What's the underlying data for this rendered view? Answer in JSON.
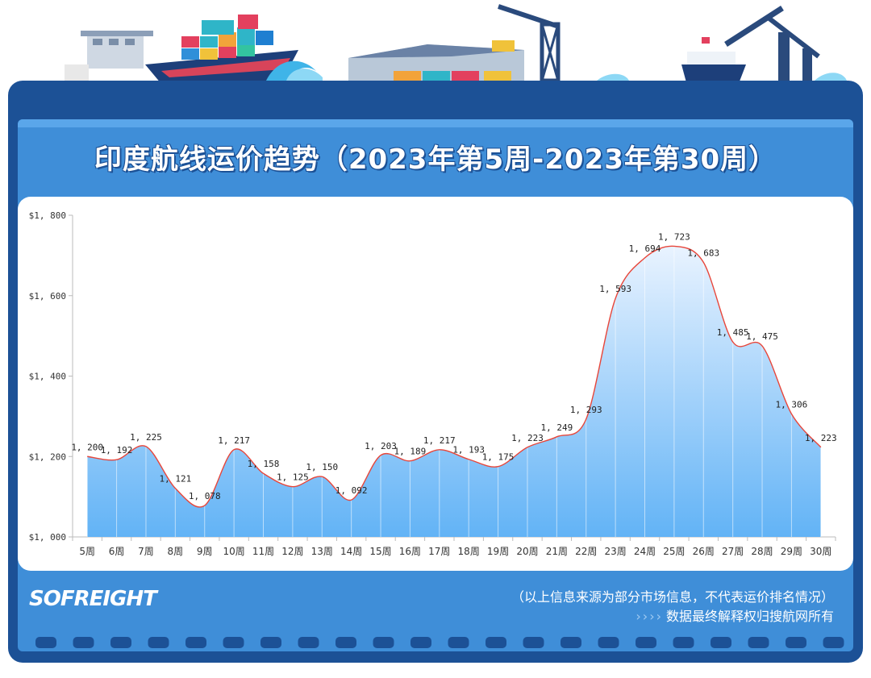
{
  "header": {
    "title": "印度航线运价趋势（2023年第5周-2023年第30周）"
  },
  "footer": {
    "logo": "SOFREIGHT",
    "note_source": "（以上信息来源为部分市场信息，不代表运价排名情况）",
    "note_rights": "数据最终解释权归搜航网所有",
    "arrows": "››››"
  },
  "colors": {
    "board": "#1c5196",
    "panel": "#3f8ed8",
    "line": "#e8463a",
    "area_top": "#e9f3ff",
    "area_bottom": "#62b3f6"
  },
  "chart_data": {
    "type": "area",
    "title": "",
    "xlabel": "",
    "ylabel": "",
    "categories": [
      "5周",
      "6周",
      "7周",
      "8周",
      "9周",
      "10周",
      "11周",
      "12周",
      "13周",
      "14周",
      "15周",
      "16周",
      "17周",
      "18周",
      "19周",
      "20周",
      "21周",
      "22周",
      "23周",
      "24周",
      "25周",
      "26周",
      "27周",
      "28周",
      "29周",
      "30周"
    ],
    "values": [
      1200,
      1192,
      1225,
      1121,
      1078,
      1217,
      1158,
      1125,
      1150,
      1092,
      1203,
      1189,
      1217,
      1193,
      1175,
      1223,
      1249,
      1293,
      1593,
      1694,
      1723,
      1683,
      1485,
      1475,
      1306,
      1223
    ],
    "value_labels": [
      "1, 200",
      "1, 192",
      "1, 225",
      "1, 121",
      "1, 078",
      "1, 217",
      "1, 158",
      "1, 125",
      "1, 150",
      "1, 092",
      "1, 203",
      "1, 189",
      "1, 217",
      "1, 193",
      "1, 175",
      "1, 223",
      "1, 249",
      "1, 293",
      "1, 593",
      "1, 694",
      "1, 723",
      "1, 683",
      "1, 485",
      "1, 475",
      "1, 306",
      "1, 223"
    ],
    "ylim": [
      1000,
      1800
    ],
    "yticks": [
      1000,
      1200,
      1400,
      1600,
      1800
    ],
    "ytick_labels": [
      "$1, 000",
      "$1, 200",
      "$1, 400",
      "$1, 600",
      "$1, 800"
    ],
    "grid": false,
    "legend": "none"
  }
}
